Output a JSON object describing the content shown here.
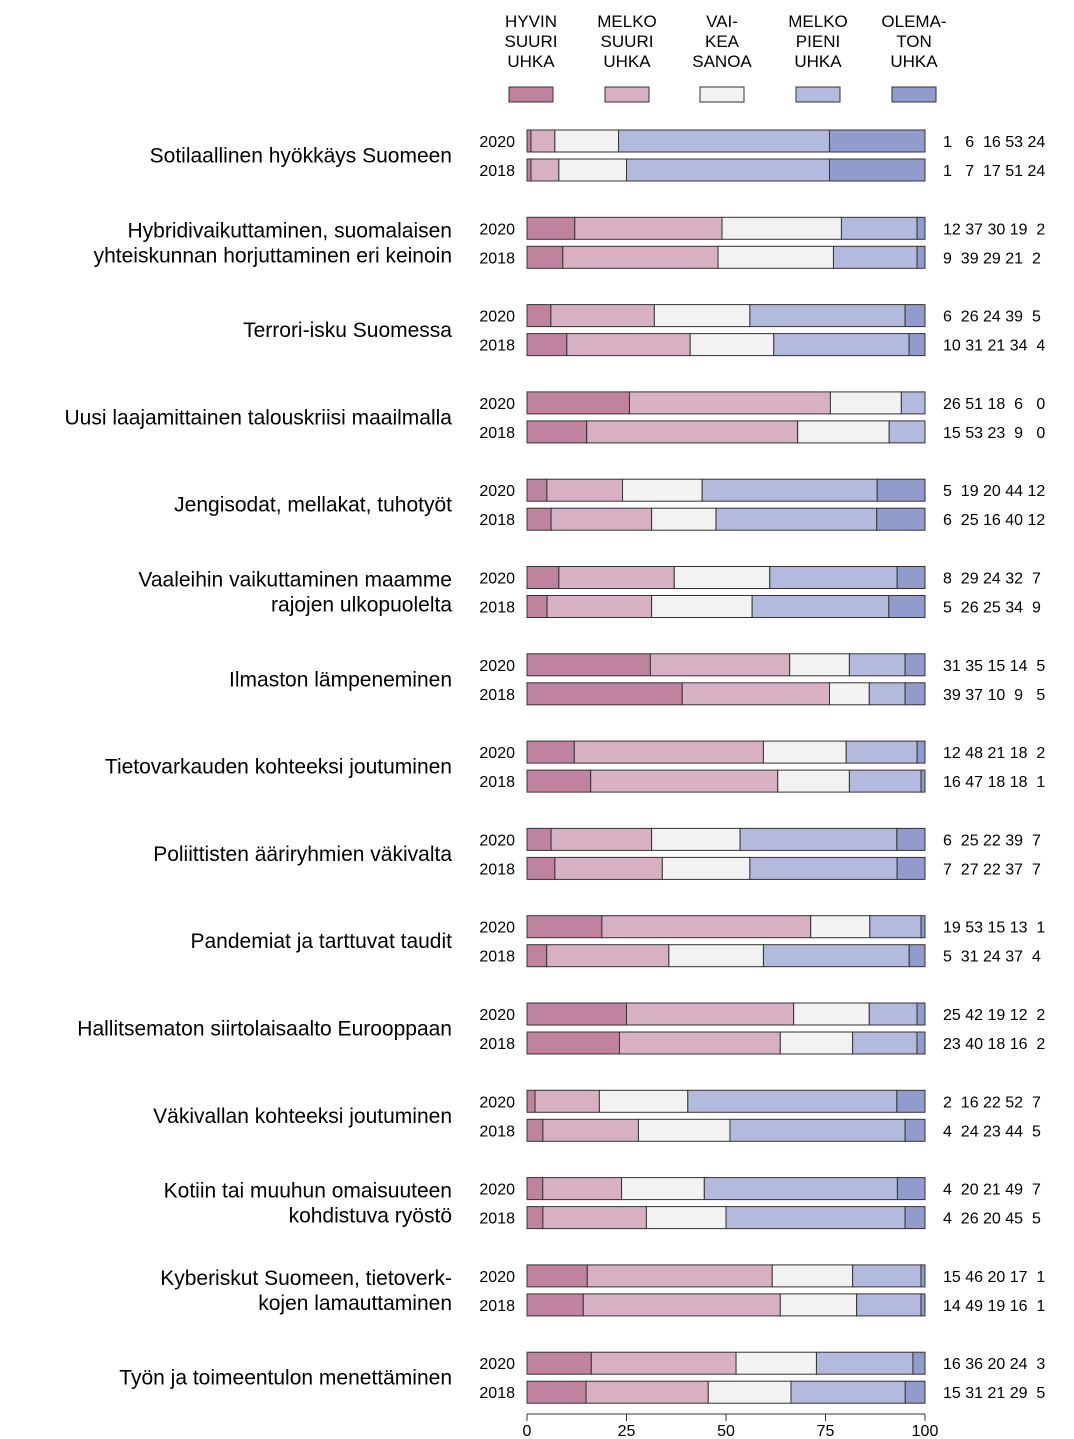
{
  "chart_data": {
    "type": "bar",
    "stacked": true,
    "orientation": "horizontal",
    "legend": {
      "placement": "top",
      "entries": [
        {
          "lines": [
            "HYVIN",
            "SUURI",
            "UHKA"
          ],
          "color": "#c0839f"
        },
        {
          "lines": [
            "MELKO",
            "SUURI",
            "UHKA"
          ],
          "color": "#d8b0c3"
        },
        {
          "lines": [
            "VAI-",
            "KEA",
            "SANOA"
          ],
          "color": "#f2f2f2"
        },
        {
          "lines": [
            "MELKO",
            "PIENI",
            "UHKA"
          ],
          "color": "#b3bade"
        },
        {
          "lines": [
            "OLEMA-",
            "TON",
            "UHKA"
          ],
          "color": "#929ccc"
        }
      ]
    },
    "xlim": [
      0,
      100
    ],
    "xticks": [
      "0",
      "25",
      "50",
      "75",
      "100"
    ],
    "categories": [
      {
        "label": [
          "Sotilaallinen hyökkäys Suomeen"
        ],
        "rows": [
          {
            "year": "2020",
            "values": [
              1,
              6,
              16,
              53,
              24
            ],
            "text": "1   6  16 53 24"
          },
          {
            "year": "2018",
            "values": [
              1,
              7,
              17,
              51,
              24
            ],
            "text": "1   7  17 51 24"
          }
        ]
      },
      {
        "label": [
          "Hybridivaikuttaminen, suomalaisen",
          "yhteiskunnan horjuttaminen eri keinoin"
        ],
        "rows": [
          {
            "year": "2020",
            "values": [
              12,
              37,
              30,
              19,
              2
            ],
            "text": "12 37 30 19  2"
          },
          {
            "year": "2018",
            "values": [
              9,
              39,
              29,
              21,
              2
            ],
            "text": "9  39 29 21  2"
          }
        ]
      },
      {
        "label": [
          "Terrori-isku Suomessa"
        ],
        "rows": [
          {
            "year": "2020",
            "values": [
              6,
              26,
              24,
              39,
              5
            ],
            "text": "6  26 24 39  5"
          },
          {
            "year": "2018",
            "values": [
              10,
              31,
              21,
              34,
              4
            ],
            "text": "10 31 21 34  4"
          }
        ]
      },
      {
        "label": [
          "Uusi laajamittainen talouskriisi maailmalla"
        ],
        "rows": [
          {
            "year": "2020",
            "values": [
              26,
              51,
              18,
              6,
              0
            ],
            "text": "26 51 18  6   0"
          },
          {
            "year": "2018",
            "values": [
              15,
              53,
              23,
              9,
              0
            ],
            "text": "15 53 23  9   0"
          }
        ]
      },
      {
        "label": [
          "Jengisodat, mellakat, tuhotyöt"
        ],
        "rows": [
          {
            "year": "2020",
            "values": [
              5,
              19,
              20,
              44,
              12
            ],
            "text": "5  19 20 44 12"
          },
          {
            "year": "2018",
            "values": [
              6,
              25,
              16,
              40,
              12
            ],
            "text": "6  25 16 40 12"
          }
        ]
      },
      {
        "label": [
          "Vaaleihin vaikuttaminen maamme",
          "rajojen ulkopuolelta"
        ],
        "rows": [
          {
            "year": "2020",
            "values": [
              8,
              29,
              24,
              32,
              7
            ],
            "text": "8  29 24 32  7"
          },
          {
            "year": "2018",
            "values": [
              5,
              26,
              25,
              34,
              9
            ],
            "text": "5  26 25 34  9"
          }
        ]
      },
      {
        "label": [
          "Ilmaston lämpeneminen"
        ],
        "rows": [
          {
            "year": "2020",
            "values": [
              31,
              35,
              15,
              14,
              5
            ],
            "text": "31 35 15 14  5"
          },
          {
            "year": "2018",
            "values": [
              39,
              37,
              10,
              9,
              5
            ],
            "text": "39 37 10  9   5"
          }
        ]
      },
      {
        "label": [
          "Tietovarkauden kohteeksi joutuminen"
        ],
        "rows": [
          {
            "year": "2020",
            "values": [
              12,
              48,
              21,
              18,
              2
            ],
            "text": "12 48 21 18  2"
          },
          {
            "year": "2018",
            "values": [
              16,
              47,
              18,
              18,
              1
            ],
            "text": "16 47 18 18  1"
          }
        ]
      },
      {
        "label": [
          "Poliittisten ääriryhmien väkivalta"
        ],
        "rows": [
          {
            "year": "2020",
            "values": [
              6,
              25,
              22,
              39,
              7
            ],
            "text": "6  25 22 39  7"
          },
          {
            "year": "2018",
            "values": [
              7,
              27,
              22,
              37,
              7
            ],
            "text": "7  27 22 37  7"
          }
        ]
      },
      {
        "label": [
          "Pandemiat ja tarttuvat taudit"
        ],
        "rows": [
          {
            "year": "2020",
            "values": [
              19,
              53,
              15,
              13,
              1
            ],
            "text": "19 53 15 13  1"
          },
          {
            "year": "2018",
            "values": [
              5,
              31,
              24,
              37,
              4
            ],
            "text": "5  31 24 37  4"
          }
        ]
      },
      {
        "label": [
          "Hallitsematon siirtolaisaalto Eurooppaan"
        ],
        "rows": [
          {
            "year": "2020",
            "values": [
              25,
              42,
              19,
              12,
              2
            ],
            "text": "25 42 19 12  2"
          },
          {
            "year": "2018",
            "values": [
              23,
              40,
              18,
              16,
              2
            ],
            "text": "23 40 18 16  2"
          }
        ]
      },
      {
        "label": [
          "Väkivallan kohteeksi joutuminen"
        ],
        "rows": [
          {
            "year": "2020",
            "values": [
              2,
              16,
              22,
              52,
              7
            ],
            "text": "2  16 22 52  7"
          },
          {
            "year": "2018",
            "values": [
              4,
              24,
              23,
              44,
              5
            ],
            "text": "4  24 23 44  5"
          }
        ]
      },
      {
        "label": [
          "Kotiin tai muuhun omaisuuteen",
          "kohdistuva ryöstö"
        ],
        "rows": [
          {
            "year": "2020",
            "values": [
              4,
              20,
              21,
              49,
              7
            ],
            "text": "4  20 21 49  7"
          },
          {
            "year": "2018",
            "values": [
              4,
              26,
              20,
              45,
              5
            ],
            "text": "4  26 20 45  5"
          }
        ]
      },
      {
        "label": [
          "Kyberiskut Suomeen, tietoverk-",
          "kojen lamauttaminen"
        ],
        "rows": [
          {
            "year": "2020",
            "values": [
              15,
              46,
              20,
              17,
              1
            ],
            "text": "15 46 20 17  1"
          },
          {
            "year": "2018",
            "values": [
              14,
              49,
              19,
              16,
              1
            ],
            "text": "14 49 19 16  1"
          }
        ]
      },
      {
        "label": [
          "Työn ja toimeentulon menettäminen"
        ],
        "rows": [
          {
            "year": "2020",
            "values": [
              16,
              36,
              20,
              24,
              3
            ],
            "text": "16 36 20 24  3"
          },
          {
            "year": "2018",
            "values": [
              15,
              31,
              21,
              29,
              5
            ],
            "text": "15 31 21 29  5"
          }
        ]
      }
    ]
  }
}
